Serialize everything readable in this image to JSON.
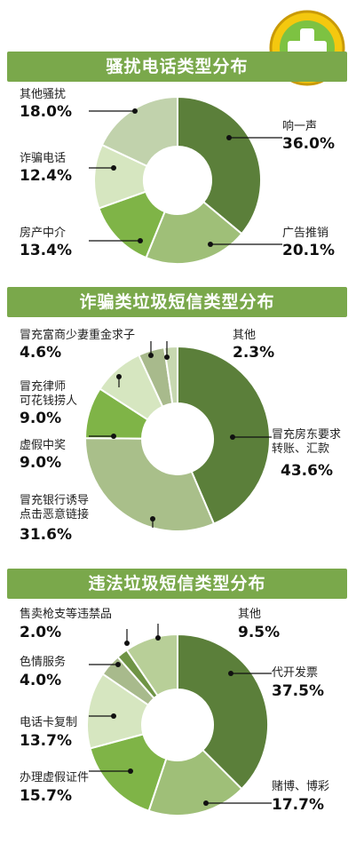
{
  "colors": {
    "banner": "#7aa84b",
    "slices": [
      "#5b7f3a",
      "#9fbf78",
      "#7fb447",
      "#d6e6c0",
      "#c1d2ac",
      "#a9bf8a",
      "#b8cf98"
    ]
  },
  "logo": {
    "icon": "plus-shield-icon"
  },
  "chart_data": [
    {
      "type": "pie",
      "title": "骚扰电话类型分布",
      "slices": [
        {
          "label": "响一声",
          "value": 36.0,
          "pct": "36.0%"
        },
        {
          "label": "广告推销",
          "value": 20.1,
          "pct": "20.1%"
        },
        {
          "label": "房产中介",
          "value": 13.4,
          "pct": "13.4%"
        },
        {
          "label": "诈骗电话",
          "value": 12.4,
          "pct": "12.4%"
        },
        {
          "label": "其他骚扰",
          "value": 18.0,
          "pct": "18.0%"
        }
      ]
    },
    {
      "type": "pie",
      "title": "诈骗类垃圾短信类型分布",
      "slices": [
        {
          "label": "冒充房东要求\n转账、汇款",
          "value": 43.6,
          "pct": "43.6%"
        },
        {
          "label": "冒充银行诱导\n点击恶意链接",
          "value": 31.6,
          "pct": "31.6%"
        },
        {
          "label": "虚假中奖",
          "value": 9.0,
          "pct": "9.0%"
        },
        {
          "label": "冒充律师\n可花钱捞人",
          "value": 9.0,
          "pct": "9.0%"
        },
        {
          "label": "冒充富商少妻重金求子",
          "value": 4.6,
          "pct": "4.6%"
        },
        {
          "label": "其他",
          "value": 2.3,
          "pct": "2.3%"
        }
      ]
    },
    {
      "type": "pie",
      "title": "违法垃圾短信类型分布",
      "slices": [
        {
          "label": "代开发票",
          "value": 37.5,
          "pct": "37.5%"
        },
        {
          "label": "赌博、博彩",
          "value": 17.7,
          "pct": "17.7%"
        },
        {
          "label": "办理虚假证件",
          "value": 15.7,
          "pct": "15.7%"
        },
        {
          "label": "电话卡复制",
          "value": 13.7,
          "pct": "13.7%"
        },
        {
          "label": "色情服务",
          "value": 4.0,
          "pct": "4.0%"
        },
        {
          "label": "售卖枪支等违禁品",
          "value": 2.0,
          "pct": "2.0%"
        },
        {
          "label": "其他",
          "value": 9.5,
          "pct": "9.5%"
        }
      ]
    }
  ]
}
